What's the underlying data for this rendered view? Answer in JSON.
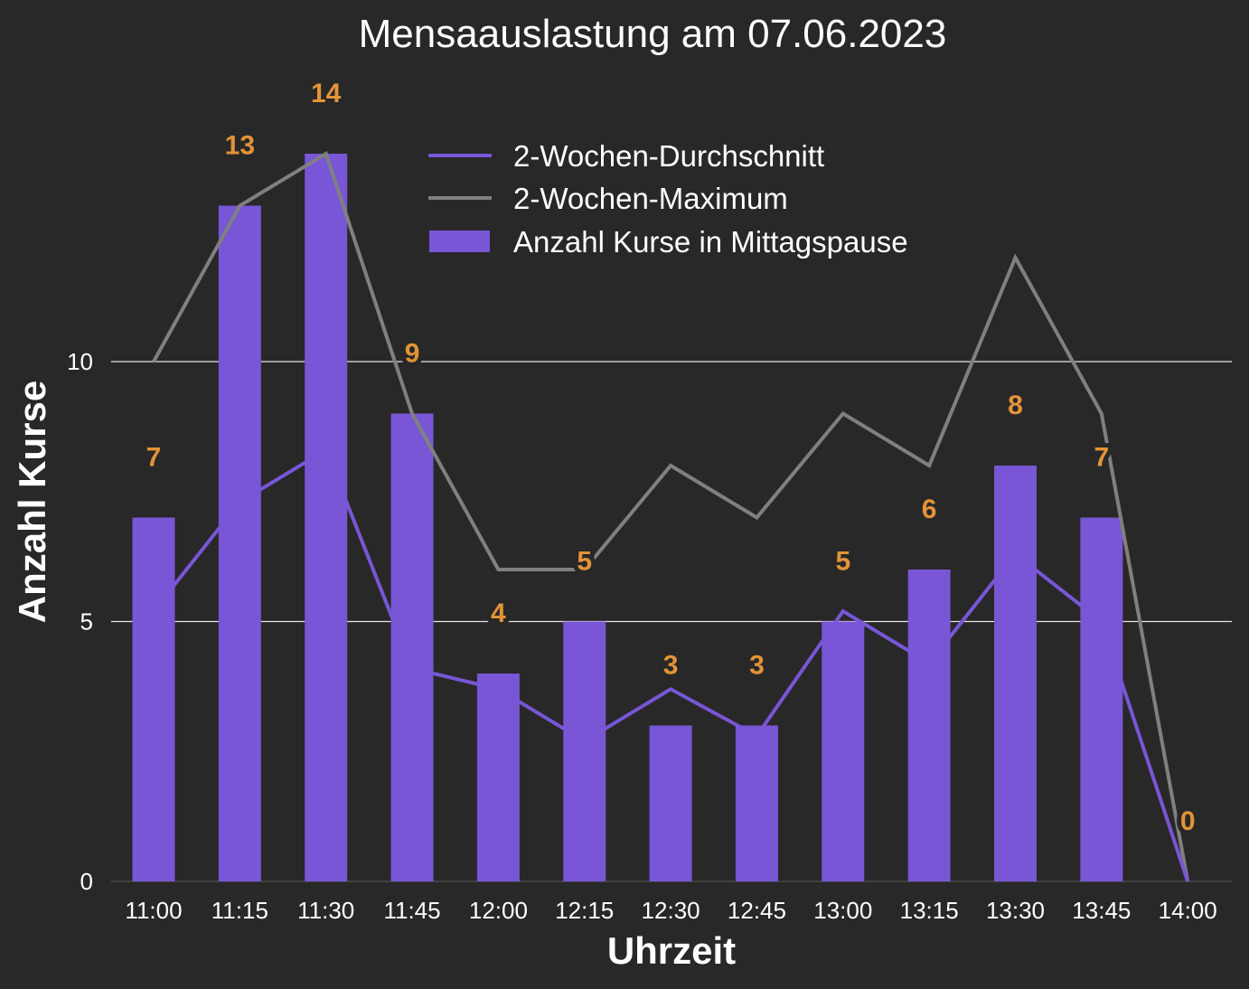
{
  "chart_data": {
    "type": "bar",
    "title": "Mensaauslastung am 07.06.2023",
    "xlabel": "Uhrzeit",
    "ylabel": "Anzahl Kurse",
    "ylim": [
      0,
      15.5
    ],
    "yticks": [
      0,
      5,
      10
    ],
    "grid": true,
    "legend_position": "top-center",
    "categories": [
      "11:00",
      "11:15",
      "11:30",
      "11:45",
      "12:00",
      "12:15",
      "12:30",
      "12:45",
      "13:00",
      "13:15",
      "13:30",
      "13:45",
      "14:00"
    ],
    "series": [
      {
        "name": "Anzahl Kurse in Mittagspause",
        "type": "bar",
        "color": "#7856d6",
        "values": [
          7,
          13,
          14,
          9,
          4,
          5,
          3,
          3,
          5,
          6,
          8,
          7,
          0
        ],
        "data_labels": [
          "7",
          "13",
          "14",
          "9",
          "4",
          "5",
          "3",
          "3",
          "5",
          "6",
          "8",
          "7",
          "0"
        ],
        "label_color": "#e39437"
      },
      {
        "name": "2-Wochen-Durchschnitt",
        "type": "line",
        "color": "#7856d6",
        "values": [
          5.2,
          7.3,
          8.3,
          4.1,
          3.7,
          2.7,
          3.7,
          2.8,
          5.2,
          4.2,
          6.3,
          5.0,
          0
        ]
      },
      {
        "name": "2-Wochen-Maximum",
        "type": "line",
        "color": "#808080",
        "values": [
          10,
          13,
          14,
          9,
          6,
          6,
          8,
          7,
          9,
          8,
          12,
          9,
          0
        ]
      }
    ]
  }
}
